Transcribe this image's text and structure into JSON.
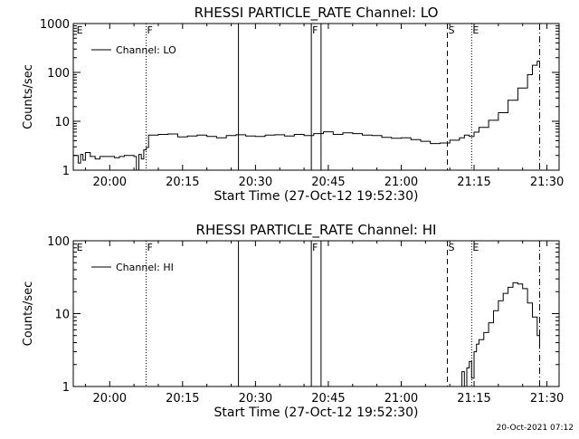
{
  "footer_timestamp": "20-Oct-2021 07:12",
  "chart_data": [
    {
      "type": "line",
      "title": "RHESSI PARTICLE_RATE Channel: LO",
      "xlabel": "Start Time (27-Oct-12 19:52:30)",
      "ylabel": "Counts/sec",
      "yscale": "log",
      "ylim": [
        1,
        1000
      ],
      "xlim": [
        "19:52:30",
        "21:32:30"
      ],
      "x_ticks": [
        "20:00",
        "20:15",
        "20:30",
        "20:45",
        "21:00",
        "21:15",
        "21:30"
      ],
      "y_ticks": [
        {
          "value": 1,
          "label": "1"
        },
        {
          "value": 10,
          "label": "10"
        },
        {
          "value": 100,
          "label": "100"
        },
        {
          "value": 1000,
          "label": "1000"
        }
      ],
      "legend": {
        "position": "top-left",
        "entries": [
          "Channel: LO"
        ]
      },
      "markers": [
        {
          "time": "19:53:00",
          "label": "E",
          "style": "none"
        },
        {
          "time": "20:07:30",
          "label": "F",
          "style": "dotted"
        },
        {
          "time": "20:26:30",
          "label": "",
          "style": "solid"
        },
        {
          "time": "20:41:30",
          "label": "F",
          "style": "solid"
        },
        {
          "time": "20:43:30",
          "label": "",
          "style": "solid"
        },
        {
          "time": "21:09:30",
          "label": "S",
          "style": "dashed"
        },
        {
          "time": "21:14:30",
          "label": "E",
          "style": "dotted"
        },
        {
          "time": "21:28:30",
          "label": "",
          "style": "dashdot"
        }
      ],
      "series": [
        {
          "name": "Channel: LO",
          "x": [
            "19:52:30",
            "19:53:30",
            "19:54:00",
            "19:54:30",
            "19:55:00",
            "19:56:00",
            "19:57:00",
            "19:58:00",
            "19:59:00",
            "20:00:00",
            "20:01:00",
            "20:02:00",
            "20:03:00",
            "20:04:00",
            "20:05:00",
            "20:05:30",
            "20:06:00",
            "20:06:30",
            "20:07:00",
            "20:07:30",
            "20:08:00",
            "20:10:00",
            "20:12:00",
            "20:14:00",
            "20:16:00",
            "20:18:00",
            "20:20:00",
            "20:22:00",
            "20:24:00",
            "20:26:00",
            "20:28:00",
            "20:30:00",
            "20:32:00",
            "20:34:00",
            "20:36:00",
            "20:38:00",
            "20:40:00",
            "20:42:00",
            "20:44:00",
            "20:46:00",
            "20:48:00",
            "20:50:00",
            "20:52:00",
            "20:54:00",
            "20:56:00",
            "20:58:00",
            "21:00:00",
            "21:02:00",
            "21:04:00",
            "21:06:00",
            "21:08:00",
            "21:10:00",
            "21:12:00",
            "21:13:00",
            "21:14:00",
            "21:15:00",
            "21:16:00",
            "21:18:00",
            "21:20:00",
            "21:22:00",
            "21:24:00",
            "21:26:00",
            "21:27:00",
            "21:28:00",
            "21:28:30"
          ],
          "y": [
            2.0,
            1.4,
            2.1,
            1.6,
            2.3,
            1.9,
            1.7,
            1.9,
            1.9,
            1.9,
            1.8,
            1.9,
            2.0,
            2.0,
            1.9,
            1.0,
            2.1,
            1.7,
            2.6,
            2.9,
            5.2,
            5.4,
            5.5,
            4.8,
            5.0,
            5.2,
            4.9,
            4.6,
            5.1,
            5.3,
            5.0,
            4.9,
            5.2,
            5.3,
            5.0,
            5.4,
            5.1,
            5.6,
            6.1,
            5.4,
            5.8,
            5.6,
            5.2,
            5.1,
            4.7,
            4.5,
            4.6,
            4.2,
            3.9,
            3.5,
            3.6,
            4.1,
            4.6,
            5.2,
            4.9,
            6.0,
            7.5,
            10.5,
            15.0,
            27.0,
            48.0,
            90.0,
            140.0,
            170.0,
            165.0
          ]
        }
      ]
    },
    {
      "type": "line",
      "title": "RHESSI PARTICLE_RATE Channel: HI",
      "xlabel": "Start Time (27-Oct-12 19:52:30)",
      "ylabel": "Counts/sec",
      "yscale": "log",
      "ylim": [
        1,
        100
      ],
      "xlim": [
        "19:52:30",
        "21:32:30"
      ],
      "x_ticks": [
        "20:00",
        "20:15",
        "20:30",
        "20:45",
        "21:00",
        "21:15",
        "21:30"
      ],
      "y_ticks": [
        {
          "value": 1,
          "label": "1"
        },
        {
          "value": 10,
          "label": "10"
        },
        {
          "value": 100,
          "label": "100"
        }
      ],
      "legend": {
        "position": "top-left",
        "entries": [
          "Channel: HI"
        ]
      },
      "markers": [
        {
          "time": "19:53:00",
          "label": "E",
          "style": "none"
        },
        {
          "time": "20:07:30",
          "label": "F",
          "style": "dotted"
        },
        {
          "time": "20:26:30",
          "label": "",
          "style": "solid"
        },
        {
          "time": "20:41:30",
          "label": "F",
          "style": "solid"
        },
        {
          "time": "20:43:30",
          "label": "",
          "style": "solid"
        },
        {
          "time": "21:09:30",
          "label": "S",
          "style": "dashed"
        },
        {
          "time": "21:14:30",
          "label": "E",
          "style": "dotted"
        },
        {
          "time": "21:28:30",
          "label": "",
          "style": "dashdot"
        }
      ],
      "series": [
        {
          "name": "Channel: HI",
          "x": [
            "21:12:00",
            "21:12:30",
            "21:13:00",
            "21:13:30",
            "21:14:00",
            "21:14:30",
            "21:15:00",
            "21:15:30",
            "21:16:00",
            "21:17:00",
            "21:18:00",
            "21:19:00",
            "21:20:00",
            "21:21:00",
            "21:22:00",
            "21:23:00",
            "21:24:00",
            "21:25:00",
            "21:26:00",
            "21:27:00",
            "21:28:00",
            "21:28:30"
          ],
          "y": [
            1.0,
            1.6,
            1.0,
            1.8,
            2.2,
            1.3,
            3.0,
            3.8,
            4.4,
            5.5,
            7.5,
            11.0,
            15.0,
            19.0,
            23.0,
            26.5,
            25.5,
            22.0,
            14.0,
            9.0,
            5.0,
            3.3
          ]
        }
      ]
    }
  ]
}
